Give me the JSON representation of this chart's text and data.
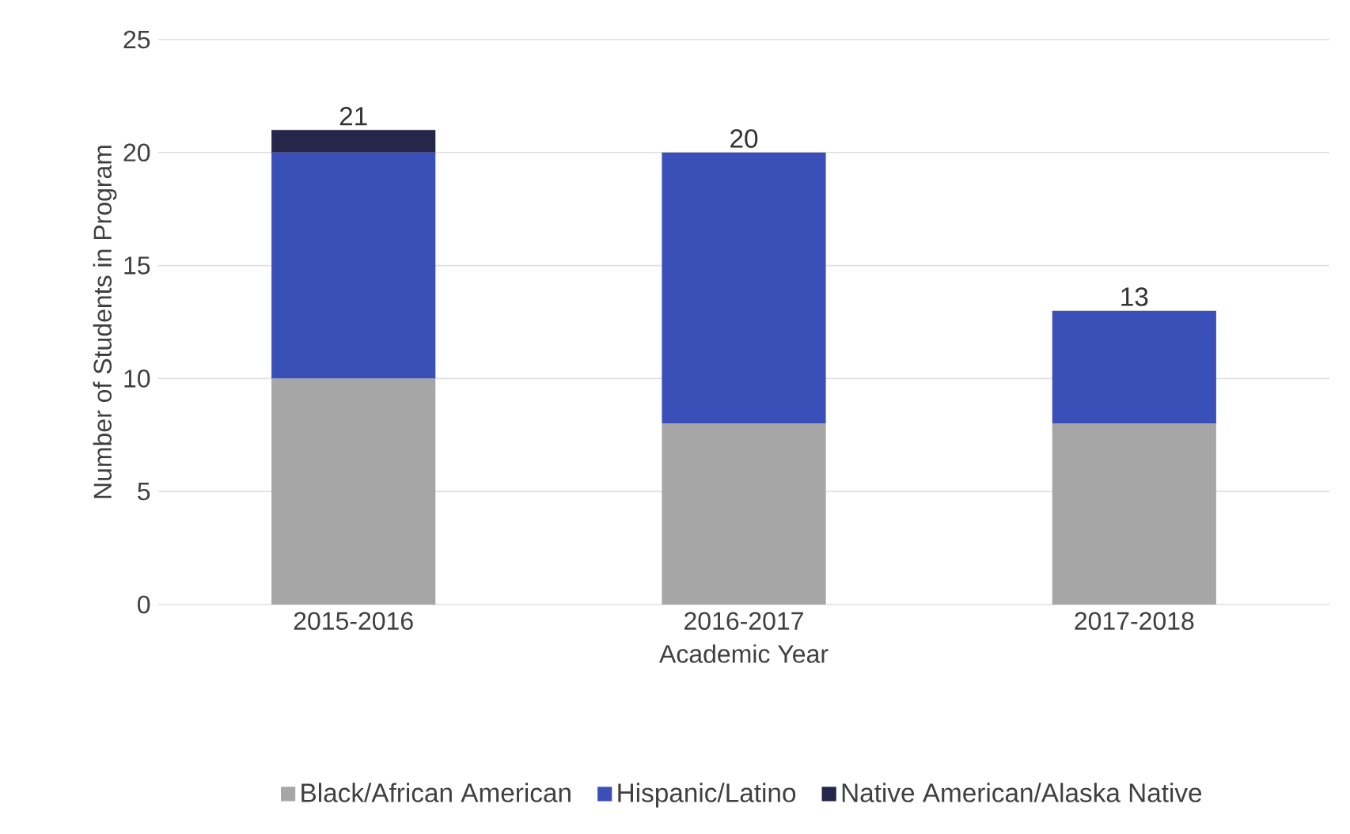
{
  "chart_data": {
    "type": "bar",
    "stacked": true,
    "xlabel": "Academic Year",
    "ylabel": "Number of Students in Program",
    "categories": [
      "2015-2016",
      "2016-2017",
      "2017-2018"
    ],
    "series": [
      {
        "name": "Black/African American",
        "color": "#a6a6a6",
        "values": [
          10,
          8,
          8
        ]
      },
      {
        "name": "Hispanic/Latino",
        "color": "#3a50b8",
        "values": [
          10,
          12,
          5
        ]
      },
      {
        "name": "Native American/Alaska Native",
        "color": "#25264a",
        "values": [
          1,
          0,
          0
        ]
      }
    ],
    "totals": [
      "21",
      "20",
      "13"
    ],
    "ylim": [
      0,
      25
    ],
    "yticks": [
      0,
      5,
      10,
      15,
      20,
      25
    ],
    "grid": "y",
    "legend": "bottom"
  }
}
